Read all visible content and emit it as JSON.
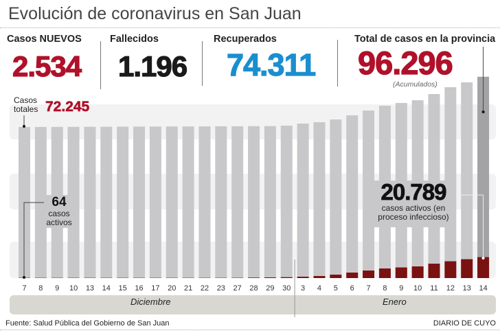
{
  "title": "Evolución de coronavirus en San Juan",
  "stats": {
    "new_cases": {
      "label": "Casos NUEVOS",
      "value": "2.534"
    },
    "deaths": {
      "label": "Fallecidos",
      "value": "1.196"
    },
    "recovered": {
      "label": "Recuperados",
      "value": "74.311"
    },
    "total": {
      "label": "Total de casos en la provincia",
      "value": "96.296",
      "note": "(Acumulados)"
    }
  },
  "colors": {
    "accent_red": "#b0112a",
    "recovered_blue": "#1a8fd0",
    "total_bar": "#c8c8ca",
    "total_bar_last": "#a3a3a5",
    "active_bar": "#7a1212",
    "month_band": "#d8d7d1"
  },
  "annotations": {
    "first_total_label": "Casos totales",
    "first_total_value": "72.245",
    "first_active_value": "64",
    "first_active_label": "casos activos",
    "last_active_value": "20.789",
    "last_active_label": "casos activos (en proceso infeccioso)"
  },
  "chart_data": {
    "type": "bar",
    "categories": [
      "7",
      "8",
      "9",
      "10",
      "13",
      "14",
      "15",
      "16",
      "17",
      "20",
      "21",
      "22",
      "23",
      "27",
      "28",
      "29",
      "30",
      "3",
      "4",
      "5",
      "6",
      "7",
      "8",
      "9",
      "10",
      "11",
      "12",
      "13",
      "14"
    ],
    "months": [
      {
        "label": "Diciembre",
        "count": 17
      },
      {
        "label": "Enero",
        "count": 12
      }
    ],
    "series": [
      {
        "name": "Casos totales",
        "values": [
          72245,
          72270,
          72300,
          72330,
          72360,
          72390,
          72420,
          72450,
          72480,
          72500,
          72530,
          72560,
          72590,
          72620,
          72650,
          72700,
          72900,
          73900,
          74550,
          75870,
          77830,
          80130,
          82430,
          83740,
          85060,
          88010,
          91300,
          93600,
          96296
        ]
      },
      {
        "name": "casos activos",
        "values": [
          64,
          70,
          75,
          80,
          85,
          90,
          95,
          100,
          110,
          120,
          130,
          150,
          170,
          300,
          500,
          700,
          900,
          1360,
          2040,
          3400,
          5450,
          7490,
          9530,
          10560,
          11580,
          14300,
          16680,
          18730,
          20789
        ]
      }
    ],
    "grid": false
  },
  "footer": {
    "source": "Fuente: Salud Pública del Gobierno de San Juan",
    "brand": "DIARIO DE CUYO"
  }
}
